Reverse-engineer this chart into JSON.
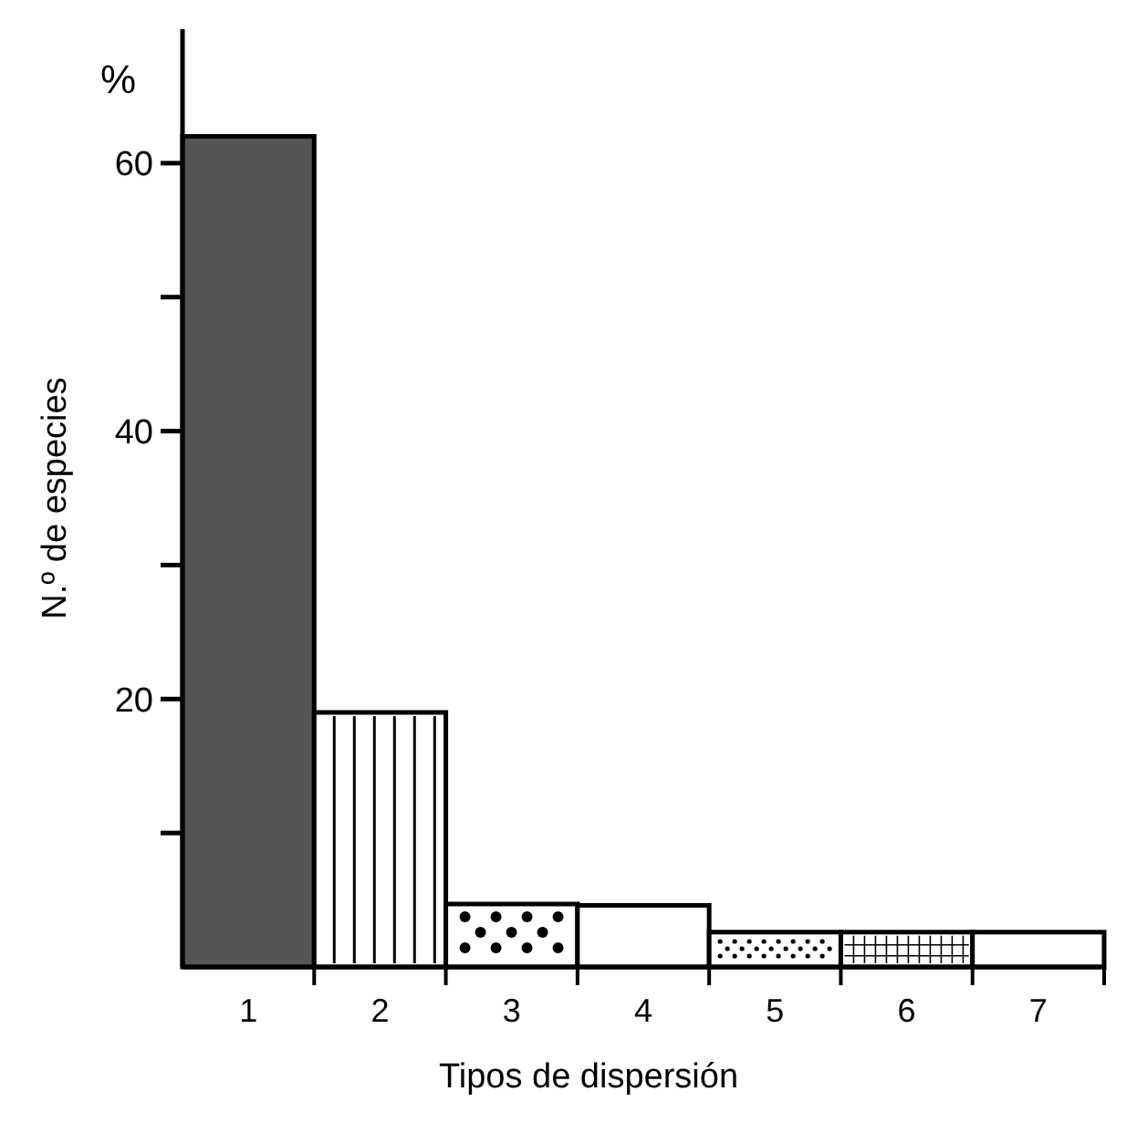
{
  "chart_data": {
    "type": "bar",
    "xlabel": "Tipos de dispersión",
    "ylabel": "N.º de especies",
    "annotations": [
      "%"
    ],
    "categories": [
      "1",
      "2",
      "3",
      "4",
      "5",
      "6",
      "7"
    ],
    "values": [
      62,
      19,
      4.7,
      4.6,
      2.6,
      2.6,
      2.6
    ],
    "colors": [
      "#555555",
      "#ffffff",
      "#ffffff",
      "#ffffff",
      "#ffffff",
      "#ffffff",
      "#ffffff"
    ],
    "ylim": [
      0,
      70
    ],
    "yticks": [
      {
        "value": 10,
        "label": null
      },
      20,
      {
        "value": 30,
        "label": null
      },
      40,
      {
        "value": 50,
        "label": null
      },
      60
    ],
    "grid": false
  }
}
